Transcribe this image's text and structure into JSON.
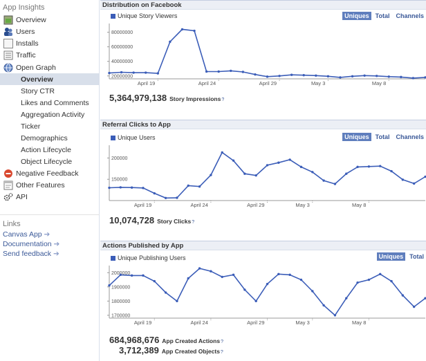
{
  "sidebar": {
    "title": "App Insights",
    "items": [
      {
        "label": "Overview",
        "icon": "overview-icon"
      },
      {
        "label": "Users",
        "icon": "users-icon"
      },
      {
        "label": "Installs",
        "icon": "installs-icon"
      },
      {
        "label": "Traffic",
        "icon": "traffic-icon"
      },
      {
        "label": "Open Graph",
        "icon": "globe-icon"
      }
    ],
    "subitems": [
      {
        "label": "Overview",
        "active": true
      },
      {
        "label": "Story CTR"
      },
      {
        "label": "Likes and Comments"
      },
      {
        "label": "Aggregation Activity"
      },
      {
        "label": "Ticker"
      },
      {
        "label": "Demographics"
      },
      {
        "label": "Action Lifecycle"
      },
      {
        "label": "Object Lifecycle"
      }
    ],
    "bottom_items": [
      {
        "label": "Negative Feedback",
        "icon": "negative-feedback-icon"
      },
      {
        "label": "Other Features",
        "icon": "other-features-icon"
      },
      {
        "label": "API",
        "icon": "gears-icon"
      }
    ],
    "links_title": "Links",
    "links": [
      "Canvas App",
      "Documentation",
      "Send feedback"
    ]
  },
  "colors": {
    "accent": "#3b5db8",
    "link": "#3b5998",
    "header_bg": "#eceff5",
    "toggle_on": "#5f7ebd"
  },
  "panels": [
    {
      "title": "Distribution on Facebook",
      "legend": "Unique Story Viewers",
      "toggles": [
        "Uniques",
        "Total",
        "Channels"
      ],
      "total_value": "5,364,979,138",
      "total_label": "Story Impressions",
      "total_help": "?"
    },
    {
      "title": "Referral Clicks to App",
      "legend": "Unique Users",
      "toggles": [
        "Uniques",
        "Total",
        "Channels"
      ],
      "total_value": "10,074,728",
      "total_label": "Story Clicks",
      "total_help": "?"
    },
    {
      "title": "Actions Published by App",
      "legend": "Unique Publishing Users",
      "toggles": [
        "Uniques",
        "Total"
      ],
      "total_value": "684,968,676",
      "total_label": "App Created Actions",
      "total_help": "?",
      "total2_value": "3,712,389",
      "total2_label": "App Created Objects",
      "total2_help": "?"
    }
  ],
  "chart_data": [
    {
      "type": "line",
      "series": [
        {
          "name": "Unique Story Viewers",
          "values": [
            24000000,
            25000000,
            24500000,
            24500000,
            23500000,
            67000000,
            84000000,
            82000000,
            26000000,
            26000000,
            27000000,
            25500000,
            22000000,
            19000000,
            20000000,
            21500000,
            21000000,
            20500000,
            19500000,
            18000000,
            19500000,
            20500000,
            20000000,
            19000000,
            18500000,
            17000000,
            18000000
          ]
        }
      ],
      "x_tick_labels": [
        "April 19",
        "April 24",
        "April 29",
        "May 3",
        "May 8"
      ],
      "x_tick_index": [
        4,
        9,
        14,
        18,
        23
      ],
      "y_ticks": [
        20000000,
        40000000,
        60000000,
        80000000
      ],
      "y_tick_labels": [
        "20000000",
        "40000000",
        "60000000",
        "80000000"
      ],
      "ylim": [
        16000000,
        92000000
      ]
    },
    {
      "type": "line",
      "series": [
        {
          "name": "Unique Users",
          "values": [
            130000,
            131000,
            130500,
            129500,
            117000,
            106000,
            106500,
            135000,
            133000,
            160000,
            213000,
            194000,
            163000,
            159000,
            183000,
            189000,
            196000,
            179000,
            167000,
            147000,
            139000,
            163000,
            179000,
            180000,
            181000,
            169000,
            149000,
            140000,
            156000
          ]
        }
      ],
      "x_tick_labels": [
        "April 19",
        "April 24",
        "April 29",
        "May 3",
        "May 8"
      ],
      "x_tick_index": [
        4,
        9,
        14,
        18,
        23
      ],
      "y_ticks": [
        150000,
        200000
      ],
      "y_tick_labels": [
        "150000",
        "200000"
      ],
      "ylim": [
        100000,
        230000
      ]
    },
    {
      "type": "line",
      "series": [
        {
          "name": "Unique Publishing Users",
          "values": [
            1910000,
            1985000,
            1980000,
            1980000,
            1940000,
            1860000,
            1800000,
            1960000,
            2030000,
            2010000,
            1970000,
            1985000,
            1880000,
            1800000,
            1920000,
            1990000,
            1985000,
            1950000,
            1870000,
            1770000,
            1700000,
            1820000,
            1930000,
            1950000,
            1990000,
            1940000,
            1840000,
            1760000,
            1820000
          ]
        }
      ],
      "x_tick_labels": [
        "April 19",
        "April 24",
        "April 29",
        "May 3",
        "May 8"
      ],
      "x_tick_index": [
        4,
        9,
        14,
        18,
        23
      ],
      "y_ticks": [
        1700000,
        1800000,
        1900000,
        2000000
      ],
      "y_tick_labels": [
        "1700000",
        "1800000",
        "1900000",
        "2000000"
      ],
      "ylim": [
        1680000,
        2050000
      ]
    }
  ]
}
